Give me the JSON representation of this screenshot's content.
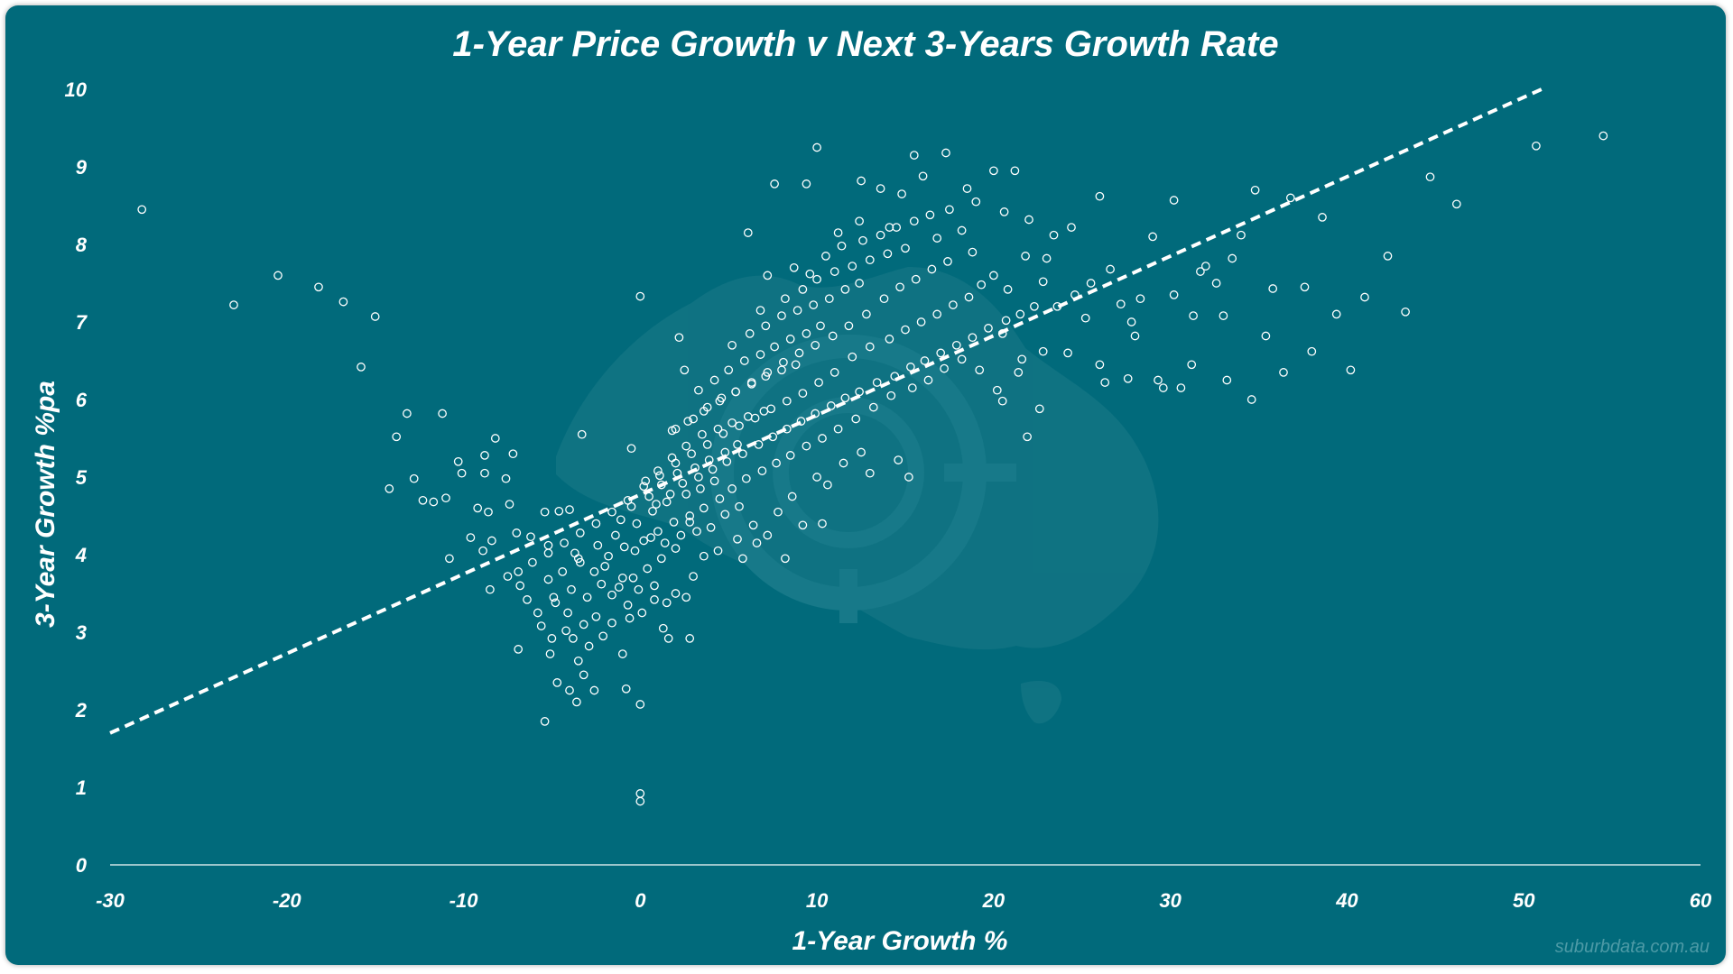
{
  "chart_data": {
    "type": "scatter",
    "title": "1-Year Price Growth v Next 3-Years Growth Rate",
    "xlabel": "1-Year Growth %",
    "ylabel": "3-Year Growth %pa",
    "xlim": [
      -30,
      60
    ],
    "ylim": [
      0,
      10
    ],
    "x_ticks": [
      "-30",
      "-20",
      "-10",
      "0",
      "10",
      "20",
      "30",
      "40",
      "50",
      "60"
    ],
    "y_ticks": [
      "0",
      "1",
      "2",
      "3",
      "4",
      "5",
      "6",
      "7",
      "8",
      "9",
      "10"
    ],
    "grid": false,
    "trendline": {
      "style": "dashed",
      "x": [
        -30,
        51
      ],
      "y": [
        1.7,
        10.0
      ]
    },
    "source_text": "suburbdata.com.au",
    "points": [
      [
        -28.2,
        8.45
      ],
      [
        -23.0,
        7.22
      ],
      [
        -20.5,
        7.6
      ],
      [
        -18.2,
        7.45
      ],
      [
        -16.8,
        7.26
      ],
      [
        -15.0,
        7.07
      ],
      [
        -15.8,
        6.42
      ],
      [
        -13.2,
        5.82
      ],
      [
        -11.2,
        5.82
      ],
      [
        -13.8,
        5.52
      ],
      [
        -12.8,
        4.98
      ],
      [
        -14.2,
        4.85
      ],
      [
        -12.3,
        4.7
      ],
      [
        -11.7,
        4.68
      ],
      [
        -11.0,
        4.73
      ],
      [
        -10.3,
        5.2
      ],
      [
        -10.1,
        5.05
      ],
      [
        -9.2,
        4.6
      ],
      [
        -9.6,
        4.22
      ],
      [
        -8.8,
        5.28
      ],
      [
        -8.8,
        5.05
      ],
      [
        -8.2,
        5.5
      ],
      [
        -7.6,
        4.98
      ],
      [
        -7.2,
        5.3
      ],
      [
        -8.6,
        4.55
      ],
      [
        -7.4,
        4.65
      ],
      [
        -7.0,
        4.28
      ],
      [
        -8.4,
        4.18
      ],
      [
        -6.2,
        4.23
      ],
      [
        -5.2,
        4.12
      ],
      [
        -10.8,
        3.95
      ],
      [
        -8.9,
        4.05
      ],
      [
        -8.5,
        3.55
      ],
      [
        -7.5,
        3.72
      ],
      [
        -6.8,
        3.6
      ],
      [
        -6.4,
        3.42
      ],
      [
        -5.8,
        3.25
      ],
      [
        -6.9,
        2.78
      ],
      [
        -5.4,
        4.55
      ],
      [
        -4.6,
        4.56
      ],
      [
        -4.0,
        4.58
      ],
      [
        -3.3,
        5.55
      ],
      [
        -5.4,
        1.85
      ],
      [
        -5.1,
        2.72
      ],
      [
        -4.7,
        2.35
      ],
      [
        -4.0,
        2.25
      ],
      [
        -3.6,
        2.1
      ],
      [
        -3.2,
        2.45
      ],
      [
        -3.5,
        2.63
      ],
      [
        -2.6,
        2.25
      ],
      [
        -1.0,
        2.72
      ],
      [
        -0.8,
        2.27
      ],
      [
        0.0,
        2.07
      ],
      [
        0.0,
        0.92
      ],
      [
        0.0,
        0.82
      ],
      [
        0.0,
        7.33
      ],
      [
        2.2,
        6.8
      ],
      [
        2.5,
        6.38
      ],
      [
        -0.5,
        5.37
      ],
      [
        2.8,
        2.92
      ],
      [
        -5.6,
        3.08
      ],
      [
        -5.0,
        2.92
      ],
      [
        -4.2,
        3.02
      ],
      [
        -3.8,
        2.92
      ],
      [
        -2.9,
        2.82
      ],
      [
        -2.1,
        2.95
      ],
      [
        -1.6,
        3.12
      ],
      [
        -0.6,
        3.18
      ],
      [
        0.1,
        3.25
      ],
      [
        1.3,
        3.05
      ],
      [
        1.6,
        2.92
      ],
      [
        -4.8,
        3.38
      ],
      [
        -3.9,
        3.55
      ],
      [
        -3.0,
        3.45
      ],
      [
        -2.2,
        3.62
      ],
      [
        -1.2,
        3.58
      ],
      [
        -0.4,
        3.7
      ],
      [
        0.4,
        3.82
      ],
      [
        1.2,
        3.95
      ],
      [
        2.0,
        4.08
      ],
      [
        -4.4,
        3.78
      ],
      [
        -3.4,
        3.9
      ],
      [
        -2.6,
        3.78
      ],
      [
        -1.8,
        3.98
      ],
      [
        -0.9,
        4.1
      ],
      [
        0.2,
        4.18
      ],
      [
        1.0,
        4.3
      ],
      [
        1.9,
        4.42
      ],
      [
        2.8,
        4.5
      ],
      [
        -3.7,
        4.02
      ],
      [
        -2.4,
        4.12
      ],
      [
        -1.4,
        4.25
      ],
      [
        -0.2,
        4.4
      ],
      [
        0.7,
        4.56
      ],
      [
        1.5,
        4.68
      ],
      [
        2.6,
        4.78
      ],
      [
        3.4,
        4.85
      ],
      [
        4.2,
        4.95
      ],
      [
        -1.1,
        4.45
      ],
      [
        -0.5,
        4.62
      ],
      [
        0.5,
        4.75
      ],
      [
        1.2,
        4.9
      ],
      [
        2.1,
        5.05
      ],
      [
        3.1,
        5.12
      ],
      [
        3.9,
        5.22
      ],
      [
        4.8,
        5.32
      ],
      [
        5.5,
        5.42
      ],
      [
        0.3,
        4.95
      ],
      [
        1.0,
        5.08
      ],
      [
        1.8,
        5.25
      ],
      [
        2.6,
        5.4
      ],
      [
        3.5,
        5.55
      ],
      [
        4.4,
        5.62
      ],
      [
        5.2,
        5.7
      ],
      [
        6.1,
        5.78
      ],
      [
        7.0,
        5.85
      ],
      [
        2.0,
        5.62
      ],
      [
        3.0,
        5.75
      ],
      [
        3.8,
        5.9
      ],
      [
        4.6,
        6.02
      ],
      [
        5.4,
        6.1
      ],
      [
        6.3,
        6.2
      ],
      [
        7.1,
        6.3
      ],
      [
        8.0,
        6.38
      ],
      [
        8.8,
        6.45
      ],
      [
        3.3,
        6.12
      ],
      [
        4.2,
        6.25
      ],
      [
        5.0,
        6.38
      ],
      [
        5.9,
        6.5
      ],
      [
        6.8,
        6.58
      ],
      [
        7.6,
        6.68
      ],
      [
        8.5,
        6.78
      ],
      [
        9.4,
        6.85
      ],
      [
        10.2,
        6.95
      ],
      [
        5.2,
        6.7
      ],
      [
        6.2,
        6.85
      ],
      [
        7.1,
        6.95
      ],
      [
        8.0,
        7.08
      ],
      [
        8.9,
        7.15
      ],
      [
        9.8,
        7.22
      ],
      [
        10.7,
        7.3
      ],
      [
        11.6,
        7.42
      ],
      [
        12.4,
        7.5
      ],
      [
        6.8,
        7.15
      ],
      [
        8.2,
        7.3
      ],
      [
        9.2,
        7.42
      ],
      [
        10.0,
        7.55
      ],
      [
        11.0,
        7.65
      ],
      [
        12.0,
        7.72
      ],
      [
        13.0,
        7.8
      ],
      [
        14.0,
        7.88
      ],
      [
        15.0,
        7.95
      ],
      [
        7.2,
        7.6
      ],
      [
        8.7,
        7.7
      ],
      [
        9.6,
        7.62
      ],
      [
        10.5,
        7.85
      ],
      [
        11.4,
        7.98
      ],
      [
        12.6,
        8.05
      ],
      [
        13.6,
        8.12
      ],
      [
        14.5,
        8.22
      ],
      [
        15.5,
        8.3
      ],
      [
        16.4,
        8.38
      ],
      [
        17.5,
        8.45
      ],
      [
        6.1,
        8.15
      ],
      [
        7.6,
        8.78
      ],
      [
        9.4,
        8.78
      ],
      [
        10.0,
        9.25
      ],
      [
        12.5,
        8.82
      ],
      [
        13.6,
        8.72
      ],
      [
        14.8,
        8.65
      ],
      [
        15.5,
        9.15
      ],
      [
        16.0,
        8.88
      ],
      [
        17.3,
        9.18
      ],
      [
        18.5,
        8.72
      ],
      [
        19.0,
        8.55
      ],
      [
        20.0,
        8.95
      ],
      [
        21.2,
        8.95
      ],
      [
        11.2,
        8.15
      ],
      [
        12.4,
        8.3
      ],
      [
        14.1,
        8.22
      ],
      [
        16.8,
        8.08
      ],
      [
        18.2,
        8.18
      ],
      [
        20.6,
        8.42
      ],
      [
        22.0,
        8.32
      ],
      [
        23.4,
        8.12
      ],
      [
        24.4,
        8.22
      ],
      [
        26.0,
        8.62
      ],
      [
        29.0,
        8.1
      ],
      [
        30.2,
        8.57
      ],
      [
        34.8,
        8.7
      ],
      [
        36.8,
        8.6
      ],
      [
        38.6,
        8.35
      ],
      [
        44.7,
        8.87
      ],
      [
        46.2,
        8.52
      ],
      [
        50.7,
        9.27
      ],
      [
        54.5,
        9.4
      ],
      [
        42.3,
        7.85
      ],
      [
        41.0,
        7.32
      ],
      [
        43.3,
        7.13
      ],
      [
        39.4,
        7.1
      ],
      [
        37.6,
        7.45
      ],
      [
        35.8,
        7.43
      ],
      [
        33.5,
        7.82
      ],
      [
        34.0,
        8.12
      ],
      [
        32.6,
        7.5
      ],
      [
        31.7,
        7.65
      ],
      [
        32.0,
        7.72
      ],
      [
        30.2,
        7.35
      ],
      [
        31.3,
        7.08
      ],
      [
        33.0,
        7.08
      ],
      [
        35.4,
        6.82
      ],
      [
        36.4,
        6.35
      ],
      [
        38.0,
        6.62
      ],
      [
        40.2,
        6.38
      ],
      [
        34.6,
        6.0
      ],
      [
        33.2,
        6.25
      ],
      [
        30.6,
        6.15
      ],
      [
        31.2,
        6.45
      ],
      [
        29.3,
        6.25
      ],
      [
        29.6,
        6.15
      ],
      [
        27.6,
        6.27
      ],
      [
        26.3,
        6.22
      ],
      [
        26.0,
        6.45
      ],
      [
        28.0,
        6.82
      ],
      [
        27.8,
        7.0
      ],
      [
        28.3,
        7.3
      ],
      [
        27.2,
        7.23
      ],
      [
        26.6,
        7.68
      ],
      [
        25.5,
        7.5
      ],
      [
        24.6,
        7.35
      ],
      [
        25.2,
        7.05
      ],
      [
        23.6,
        7.2
      ],
      [
        22.8,
        7.52
      ],
      [
        23.0,
        7.82
      ],
      [
        21.8,
        7.85
      ],
      [
        20.8,
        7.42
      ],
      [
        20.0,
        7.6
      ],
      [
        19.3,
        7.48
      ],
      [
        18.8,
        7.9
      ],
      [
        20.5,
        6.85
      ],
      [
        21.6,
        6.52
      ],
      [
        22.8,
        6.62
      ],
      [
        24.2,
        6.6
      ],
      [
        21.4,
        6.35
      ],
      [
        20.2,
        6.12
      ],
      [
        20.5,
        5.98
      ],
      [
        22.6,
        5.88
      ],
      [
        21.9,
        5.52
      ],
      [
        19.2,
        6.38
      ],
      [
        18.2,
        6.52
      ],
      [
        17.2,
        6.4
      ],
      [
        16.3,
        6.25
      ],
      [
        15.4,
        6.15
      ],
      [
        14.2,
        6.05
      ],
      [
        13.2,
        5.9
      ],
      [
        12.2,
        5.75
      ],
      [
        11.2,
        5.62
      ],
      [
        10.3,
        5.5
      ],
      [
        9.4,
        5.4
      ],
      [
        8.5,
        5.28
      ],
      [
        7.7,
        5.18
      ],
      [
        6.9,
        5.08
      ],
      [
        6.0,
        4.98
      ],
      [
        5.2,
        4.85
      ],
      [
        4.5,
        4.72
      ],
      [
        3.6,
        4.6
      ],
      [
        2.8,
        4.42
      ],
      [
        12.5,
        5.32
      ],
      [
        13.0,
        5.05
      ],
      [
        14.6,
        5.22
      ],
      [
        15.2,
        5.0
      ],
      [
        11.5,
        5.18
      ],
      [
        10.0,
        5.0
      ],
      [
        10.6,
        4.9
      ],
      [
        8.6,
        4.75
      ],
      [
        7.8,
        4.55
      ],
      [
        6.4,
        4.38
      ],
      [
        7.2,
        4.25
      ],
      [
        6.6,
        4.15
      ],
      [
        5.5,
        4.2
      ],
      [
        4.4,
        4.05
      ],
      [
        3.6,
        3.98
      ],
      [
        5.8,
        3.95
      ],
      [
        9.2,
        4.38
      ],
      [
        10.3,
        4.4
      ],
      [
        8.2,
        3.95
      ],
      [
        3.0,
        3.72
      ],
      [
        2.6,
        3.45
      ],
      [
        2.0,
        3.5
      ],
      [
        1.5,
        3.38
      ],
      [
        0.8,
        3.6
      ],
      [
        -0.7,
        3.35
      ],
      [
        -1.6,
        3.48
      ],
      [
        -2.5,
        3.2
      ],
      [
        -3.2,
        3.1
      ],
      [
        -4.1,
        3.25
      ],
      [
        -4.9,
        3.45
      ],
      [
        -5.2,
        3.68
      ],
      [
        -3.5,
        3.95
      ],
      [
        -2.0,
        3.85
      ],
      [
        -1.0,
        3.7
      ],
      [
        -0.1,
        3.55
      ],
      [
        0.8,
        3.42
      ],
      [
        -0.3,
        4.05
      ],
      [
        0.6,
        4.22
      ],
      [
        1.4,
        4.15
      ],
      [
        2.3,
        4.25
      ],
      [
        3.2,
        4.3
      ],
      [
        4.0,
        4.35
      ],
      [
        4.8,
        4.52
      ],
      [
        5.6,
        4.62
      ],
      [
        0.9,
        4.65
      ],
      [
        1.7,
        4.78
      ],
      [
        2.4,
        4.92
      ],
      [
        3.3,
        5.0
      ],
      [
        4.1,
        5.1
      ],
      [
        4.9,
        5.2
      ],
      [
        5.8,
        5.3
      ],
      [
        6.7,
        5.42
      ],
      [
        7.5,
        5.52
      ],
      [
        8.3,
        5.62
      ],
      [
        9.1,
        5.72
      ],
      [
        9.9,
        5.82
      ],
      [
        10.8,
        5.92
      ],
      [
        11.6,
        6.02
      ],
      [
        12.4,
        6.1
      ],
      [
        13.4,
        6.22
      ],
      [
        14.4,
        6.3
      ],
      [
        15.3,
        6.42
      ],
      [
        16.1,
        6.5
      ],
      [
        17.0,
        6.6
      ],
      [
        17.9,
        6.7
      ],
      [
        18.8,
        6.8
      ],
      [
        19.7,
        6.92
      ],
      [
        20.7,
        7.02
      ],
      [
        21.5,
        7.1
      ],
      [
        22.3,
        7.2
      ],
      [
        12.0,
        6.55
      ],
      [
        13.0,
        6.68
      ],
      [
        14.1,
        6.78
      ],
      [
        15.0,
        6.9
      ],
      [
        15.9,
        7.0
      ],
      [
        16.8,
        7.1
      ],
      [
        17.7,
        7.22
      ],
      [
        18.6,
        7.32
      ],
      [
        11.0,
        6.35
      ],
      [
        10.1,
        6.22
      ],
      [
        9.2,
        6.08
      ],
      [
        8.3,
        5.98
      ],
      [
        7.4,
        5.88
      ],
      [
        6.5,
        5.76
      ],
      [
        5.6,
        5.66
      ],
      [
        4.7,
        5.56
      ],
      [
        3.8,
        5.42
      ],
      [
        2.9,
        5.3
      ],
      [
        2.0,
        5.18
      ],
      [
        1.1,
        5.02
      ],
      [
        0.2,
        4.88
      ],
      [
        -0.7,
        4.7
      ],
      [
        -1.6,
        4.55
      ],
      [
        -2.5,
        4.4
      ],
      [
        -3.4,
        4.28
      ],
      [
        -4.3,
        4.15
      ],
      [
        -5.2,
        4.02
      ],
      [
        -6.1,
        3.9
      ],
      [
        -6.9,
        3.78
      ],
      [
        13.8,
        7.3
      ],
      [
        14.7,
        7.45
      ],
      [
        15.6,
        7.55
      ],
      [
        16.5,
        7.68
      ],
      [
        17.4,
        7.78
      ],
      [
        12.8,
        7.1
      ],
      [
        11.8,
        6.95
      ],
      [
        10.9,
        6.82
      ],
      [
        9.9,
        6.7
      ],
      [
        9.0,
        6.6
      ],
      [
        8.1,
        6.48
      ],
      [
        7.2,
        6.35
      ],
      [
        6.3,
        6.22
      ],
      [
        5.4,
        6.1
      ],
      [
        4.5,
        5.98
      ],
      [
        3.6,
        5.85
      ],
      [
        2.7,
        5.72
      ],
      [
        1.8,
        5.6
      ]
    ]
  }
}
